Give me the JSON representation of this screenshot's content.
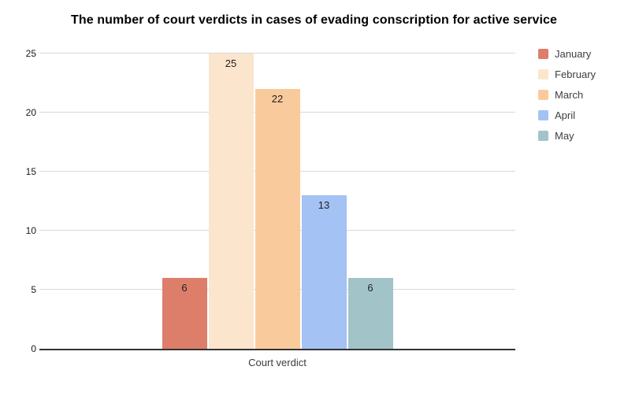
{
  "chart_data": {
    "type": "bar",
    "title": "The number of court verdicts in cases of evading conscription for active service",
    "xlabel": "Court verdict",
    "ylabel": "",
    "categories": [
      "Court verdict"
    ],
    "series": [
      {
        "name": "January",
        "values": [
          6
        ],
        "color": "#dd7e6b"
      },
      {
        "name": "February",
        "values": [
          25
        ],
        "color": "#fce5cd"
      },
      {
        "name": "March",
        "values": [
          22
        ],
        "color": "#f9cb9c"
      },
      {
        "name": "April",
        "values": [
          13
        ],
        "color": "#a4c2f4"
      },
      {
        "name": "May",
        "values": [
          6
        ],
        "color": "#a2c4c9"
      }
    ],
    "ylim": [
      0,
      25
    ],
    "yticks": [
      0,
      5,
      10,
      15,
      20,
      25
    ],
    "grid": true,
    "bar_labels": true,
    "legend_position": "right",
    "colors": {
      "gridline": "#d9d9d9",
      "baseline": "#333333",
      "bar_label_text": "#1f1f1f",
      "tick_text": "#1a1a1a",
      "axis_label_text": "#3c3c3c",
      "legend_text": "#3c4043",
      "background": "#ffffff"
    }
  }
}
